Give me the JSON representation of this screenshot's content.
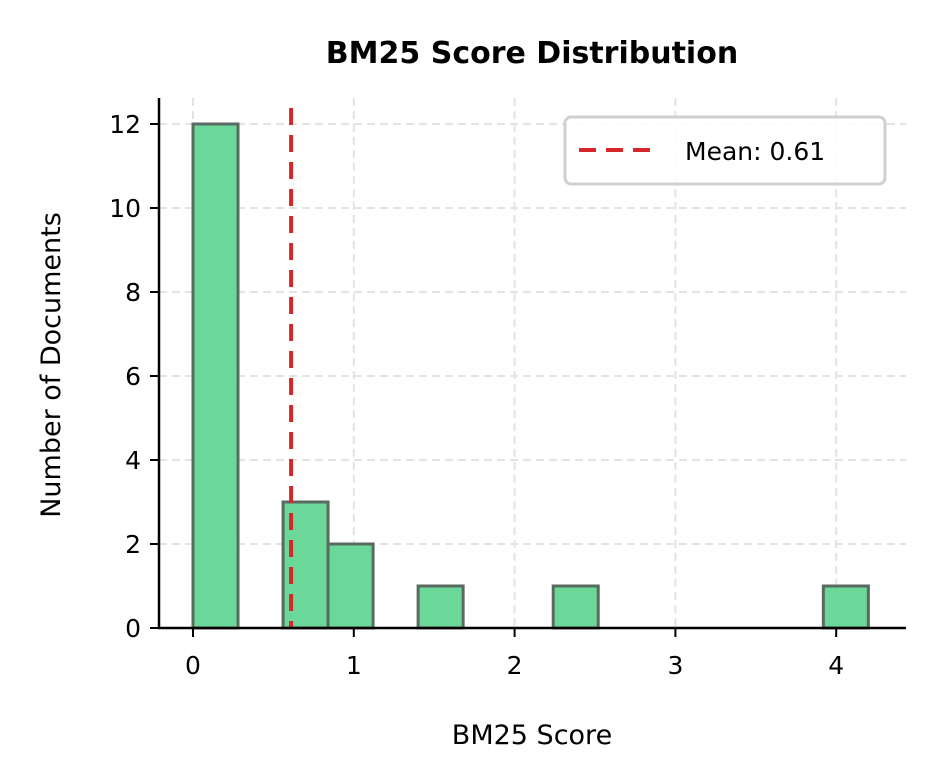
{
  "chart_data": {
    "type": "bar",
    "subtype": "histogram",
    "title": "BM25 Score Distribution",
    "xlabel": "BM25 Score",
    "ylabel": "Number of Documents",
    "xlim": [
      -0.21,
      4.43
    ],
    "ylim": [
      0,
      12.6
    ],
    "xticks": [
      0,
      1,
      2,
      3,
      4
    ],
    "yticks": [
      0,
      2,
      4,
      6,
      8,
      10,
      12
    ],
    "grid": true,
    "bin_width": 0.28,
    "bins": [
      {
        "start": 0.0,
        "end": 0.28,
        "count": 12
      },
      {
        "start": 0.56,
        "end": 0.84,
        "count": 3
      },
      {
        "start": 0.84,
        "end": 1.12,
        "count": 2
      },
      {
        "start": 1.4,
        "end": 1.68,
        "count": 1
      },
      {
        "start": 2.24,
        "end": 2.52,
        "count": 1
      },
      {
        "start": 3.92,
        "end": 4.2,
        "count": 1
      }
    ],
    "mean_line": {
      "value": 0.61,
      "label": "Mean: 0.61",
      "color": "#d62728",
      "style": "dashed"
    },
    "legend": {
      "position": "upper right",
      "entries": [
        "Mean: 0.61"
      ]
    },
    "bar_color": "#6bd89a",
    "edge_color": "#5a6a60"
  }
}
